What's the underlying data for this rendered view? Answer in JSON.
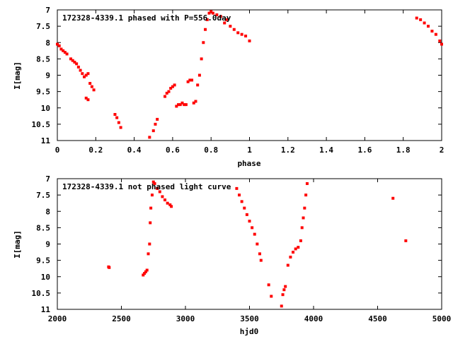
{
  "colors": {
    "points": "#ff0000",
    "frame": "#000000",
    "background": "#ffffff"
  },
  "chart_data": [
    {
      "type": "scatter",
      "title": "172328-4339.1 phased with P=556.0day",
      "xlabel": "phase",
      "ylabel": "I[mag]",
      "xlim": [
        0,
        2
      ],
      "ylim": [
        11,
        7
      ],
      "y_inverted": true,
      "grid": false,
      "xticks": [
        "0",
        "0.2",
        "0.4",
        "0.6",
        "0.8",
        "1",
        "1.2",
        "1.4",
        "1.6",
        "1.8",
        "2"
      ],
      "yticks": [
        "7",
        "7.5",
        "8",
        "8.5",
        "9",
        "9.5",
        "10",
        "10.5",
        "11"
      ],
      "series": [
        {
          "x": [
            0.0,
            0.01,
            0.02,
            0.03,
            0.04,
            0.05,
            0.07,
            0.08,
            0.09,
            0.1,
            0.11,
            0.12,
            0.13,
            0.14,
            0.15,
            0.16,
            0.15,
            0.16,
            0.17,
            0.18,
            0.19,
            0.3,
            0.31,
            0.32,
            0.33,
            0.48,
            0.5,
            0.51,
            0.52,
            0.56,
            0.57,
            0.58,
            0.59,
            0.6,
            0.61,
            0.62,
            0.63,
            0.64,
            0.65,
            0.66,
            0.67,
            0.68,
            0.69,
            0.7,
            0.71,
            0.72,
            0.73,
            0.74,
            0.75,
            0.76,
            0.77,
            0.78,
            0.79,
            0.8,
            0.81,
            0.83,
            0.85,
            0.87,
            0.88,
            0.9,
            0.92,
            0.94,
            0.96,
            0.98,
            1.0,
            1.87,
            1.89,
            1.91,
            1.93,
            1.95,
            1.97,
            1.99,
            2.0
          ],
          "y": [
            8.05,
            8.1,
            8.2,
            8.25,
            8.3,
            8.35,
            8.5,
            8.55,
            8.6,
            8.65,
            8.75,
            8.85,
            8.95,
            9.05,
            9.0,
            8.95,
            9.7,
            9.75,
            9.25,
            9.35,
            9.45,
            10.2,
            10.3,
            10.45,
            10.6,
            10.9,
            10.7,
            10.5,
            10.35,
            9.65,
            9.55,
            9.5,
            9.4,
            9.35,
            9.3,
            9.95,
            9.9,
            9.9,
            9.85,
            9.9,
            9.9,
            9.2,
            9.15,
            9.15,
            9.85,
            9.8,
            9.3,
            9.0,
            8.5,
            8.0,
            7.6,
            7.3,
            7.1,
            7.05,
            7.1,
            7.15,
            7.2,
            7.4,
            7.3,
            7.5,
            7.6,
            7.7,
            7.75,
            7.8,
            7.95,
            7.25,
            7.3,
            7.4,
            7.5,
            7.65,
            7.75,
            7.95,
            8.05
          ]
        }
      ]
    },
    {
      "type": "scatter",
      "title": "172328-4339.1 not phased light curve",
      "xlabel": "hjd0",
      "ylabel": "I[mag]",
      "xlim": [
        2000,
        5000
      ],
      "ylim": [
        11,
        7
      ],
      "y_inverted": true,
      "grid": false,
      "xticks": [
        "2000",
        "2500",
        "3000",
        "3500",
        "4000",
        "4500",
        "5000"
      ],
      "yticks": [
        "7",
        "7.5",
        "8",
        "8.5",
        "9",
        "9.5",
        "10",
        "10.5",
        "11"
      ],
      "series": [
        {
          "x": [
            2400,
            2405,
            2670,
            2680,
            2690,
            2700,
            2710,
            2720,
            2725,
            2730,
            2740,
            2750,
            2760,
            2780,
            2800,
            2820,
            2840,
            2860,
            2880,
            2890,
            3400,
            3420,
            3440,
            3460,
            3480,
            3500,
            3520,
            3540,
            3560,
            3580,
            3590,
            3650,
            3670,
            3750,
            3760,
            3770,
            3780,
            3800,
            3820,
            3840,
            3860,
            3880,
            3900,
            3910,
            3920,
            3930,
            3940,
            3950,
            4620,
            4720
          ],
          "y": [
            9.7,
            9.72,
            9.95,
            9.9,
            9.85,
            9.8,
            9.3,
            9.0,
            8.35,
            7.9,
            7.5,
            7.1,
            7.15,
            7.3,
            7.4,
            7.55,
            7.65,
            7.75,
            7.8,
            7.85,
            7.3,
            7.5,
            7.7,
            7.9,
            8.1,
            8.3,
            8.5,
            8.7,
            9.0,
            9.3,
            9.5,
            10.25,
            10.6,
            10.9,
            10.55,
            10.4,
            10.3,
            9.65,
            9.4,
            9.25,
            9.15,
            9.1,
            8.9,
            8.5,
            8.2,
            7.9,
            7.5,
            7.15,
            7.6,
            8.9
          ]
        }
      ]
    }
  ]
}
